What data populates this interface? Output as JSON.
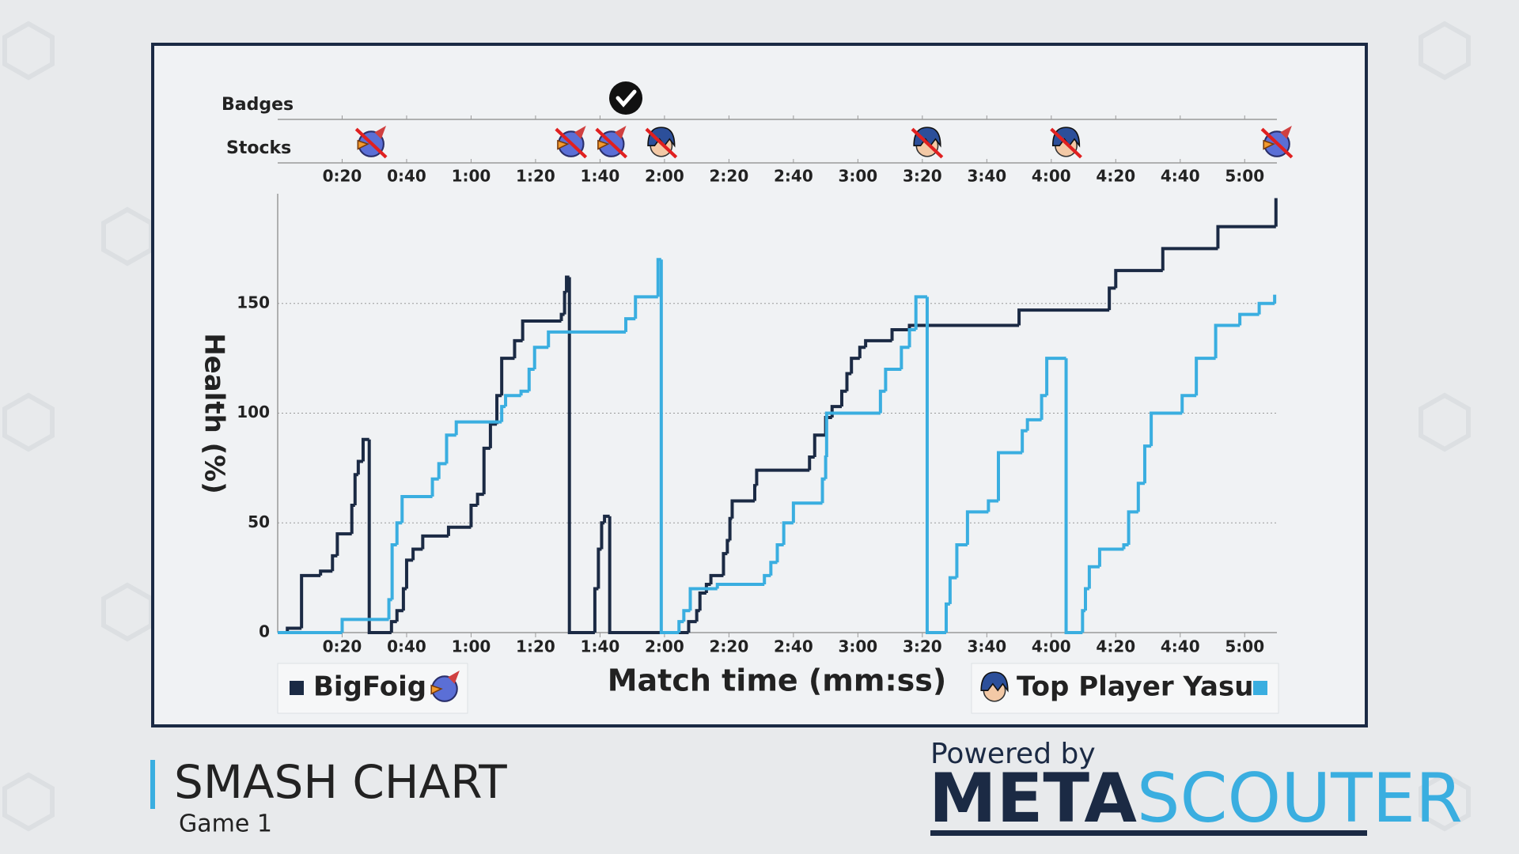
{
  "chart_data": {
    "type": "step",
    "title": "SMASH CHART",
    "subtitle": "Game 1",
    "x_label": "Match time (mm:ss)",
    "y_label": "Health (%)",
    "badge_label": "Badges",
    "stock_label": "Stocks",
    "xlim": [
      0,
      310
    ],
    "ylim": [
      0,
      200
    ],
    "xticks": [
      {
        "value": 20,
        "label": "0:20"
      },
      {
        "value": 40,
        "label": "0:40"
      },
      {
        "value": 60,
        "label": "1:00"
      },
      {
        "value": 80,
        "label": "1:20"
      },
      {
        "value": 100,
        "label": "1:40"
      },
      {
        "value": 120,
        "label": "2:00"
      },
      {
        "value": 140,
        "label": "2:20"
      },
      {
        "value": 160,
        "label": "2:40"
      },
      {
        "value": 180,
        "label": "3:00"
      },
      {
        "value": 200,
        "label": "3:20"
      },
      {
        "value": 220,
        "label": "3:40"
      },
      {
        "value": 240,
        "label": "4:00"
      },
      {
        "value": 260,
        "label": "4:20"
      },
      {
        "value": 280,
        "label": "4:40"
      },
      {
        "value": 300,
        "label": "5:00"
      }
    ],
    "yticks": [
      0,
      50,
      100,
      150
    ],
    "grid": true,
    "badges_at": [
      108
    ],
    "series": [
      {
        "name": "BigFoig",
        "color": "#1b2a44",
        "x": [
          0,
          3,
          7.4,
          13.3,
          17,
          18.5,
          23,
          24,
          25,
          26.5,
          28.4,
          35.3,
          37,
          39,
          40,
          42,
          45,
          53,
          60,
          62,
          64,
          66,
          68,
          69.5,
          73.5,
          76,
          88,
          89,
          89.6,
          90.5,
          98.4,
          99.5,
          100.5,
          101.4,
          103,
          127.5,
          130,
          131,
          133,
          134.4,
          138.3,
          139.5,
          140.3,
          141,
          148,
          148.6,
          165,
          166.6,
          170,
          172,
          175,
          176.6,
          178,
          180.6,
          182.4,
          190.6,
          196,
          230,
          258,
          260,
          274.6,
          291.7,
          309.7
        ],
        "values": [
          0,
          2,
          26,
          28,
          35,
          45,
          58,
          72,
          78,
          88,
          0,
          5,
          10,
          20,
          33,
          38,
          44,
          48,
          58,
          63,
          84,
          95,
          108,
          125,
          133,
          142,
          145,
          155,
          162,
          0,
          20,
          38,
          50,
          53,
          0,
          5,
          10,
          18,
          22,
          26,
          36,
          42,
          52,
          60,
          67,
          74,
          80,
          90,
          98,
          103,
          110,
          118,
          125,
          130,
          133,
          138,
          140,
          147,
          157,
          165,
          175,
          185,
          198
        ],
        "stock_lost_at": [
          29,
          91,
          103.5,
          310
        ]
      },
      {
        "name": "Top Player Yasu",
        "color": "#3aaee0",
        "x": [
          0,
          20,
          34.5,
          35.5,
          37,
          38.6,
          48,
          50,
          52.4,
          55.4,
          69.5,
          70.7,
          75.5,
          78,
          79.7,
          84,
          108,
          111,
          118,
          119,
          124.5,
          126,
          128,
          136.4,
          151,
          153,
          155,
          157,
          160,
          169,
          170,
          170.3,
          187,
          188.6,
          193.5,
          196,
          198,
          201.5,
          207.4,
          208.6,
          210.7,
          214,
          220.5,
          223.6,
          231,
          232.6,
          237,
          238.6,
          244.6,
          249.7,
          250.6,
          251.8,
          255,
          262.5,
          264,
          267,
          269,
          271,
          280.6,
          285,
          291,
          298.5,
          304.5,
          309.3
        ],
        "values": [
          0,
          6,
          15,
          40,
          50,
          62,
          70,
          77,
          90,
          96,
          103,
          108,
          110,
          120,
          130,
          137,
          143,
          153,
          170,
          0,
          5,
          10,
          20,
          22,
          26,
          32,
          40,
          50,
          59,
          70,
          80,
          100,
          110,
          120,
          130,
          138,
          153,
          0,
          13,
          25,
          40,
          55,
          60,
          82,
          92,
          97,
          108,
          125,
          0,
          10,
          20,
          30,
          38,
          40,
          55,
          68,
          85,
          100,
          108,
          125,
          140,
          145,
          150,
          154
        ],
        "stock_lost_at": [
          119,
          201.5,
          244.6
        ]
      }
    ]
  },
  "branding": {
    "powered_by": "Powered by",
    "logo_a": "META",
    "logo_b": "SCOUTER"
  }
}
